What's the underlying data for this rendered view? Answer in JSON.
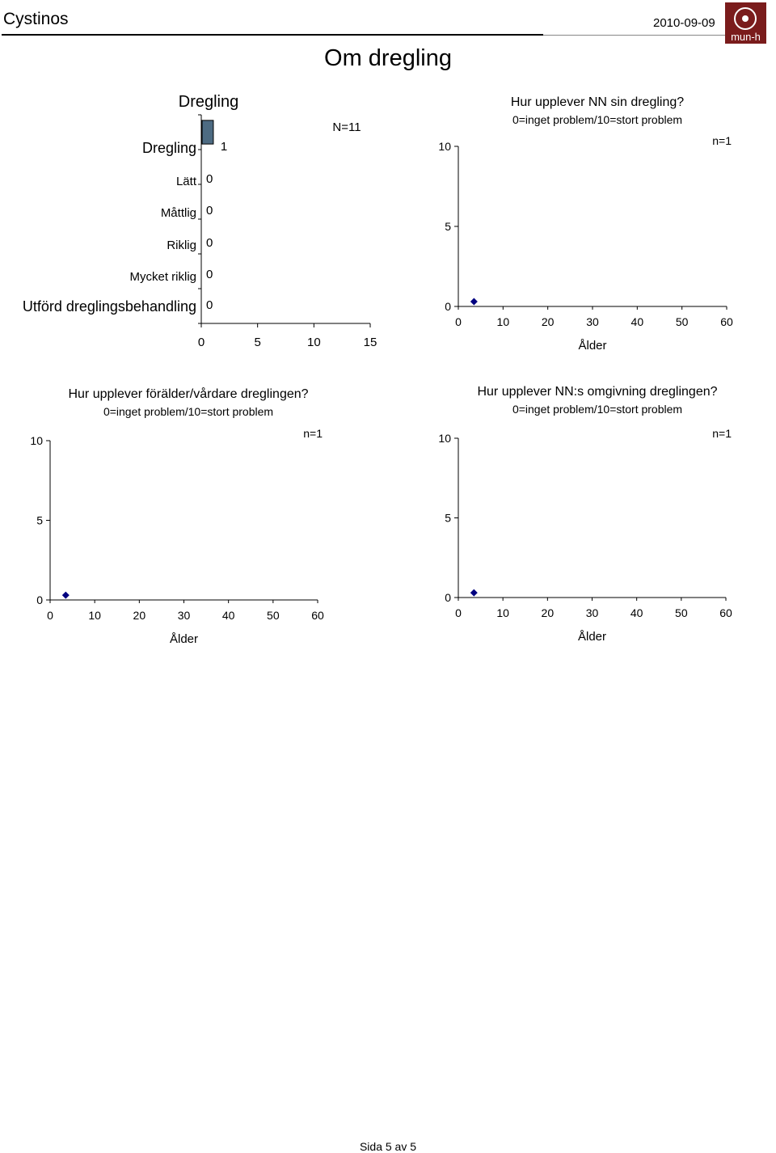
{
  "header": {
    "app_name": "Cystinos",
    "date": "2010-09-09",
    "logo_text": "mun-h",
    "colors": {
      "logo_bg": "#7a1c1c",
      "bar": "#4d6b82",
      "marker": "#000080"
    }
  },
  "page_title": "Om dregling",
  "footer": "Sida 5 av 5",
  "chart_data": [
    {
      "type": "bar",
      "orientation": "horizontal",
      "title": "Dregling",
      "annotation": "N=11",
      "categories": [
        "Dregling",
        "Lätt",
        "Måttlig",
        "Riklig",
        "Mycket riklig",
        "Utförd dreglingsbehandling"
      ],
      "values": [
        1,
        0,
        0,
        0,
        0,
        0
      ],
      "xlim": [
        0,
        15
      ],
      "xticks": [
        "0",
        "5",
        "10",
        "15"
      ]
    },
    {
      "type": "scatter",
      "title": "Hur upplever NN sin dregling?",
      "subtitle": "0=inget problem/10=stort problem",
      "annotation": "n=1",
      "xlabel": "Ålder",
      "xlim": [
        0,
        60
      ],
      "ylim": [
        0,
        10
      ],
      "xticks": [
        "0",
        "10",
        "20",
        "30",
        "40",
        "50",
        "60"
      ],
      "yticks": [
        "0",
        "5",
        "10"
      ],
      "points": [
        {
          "x": 3.5,
          "y": 0.3
        }
      ]
    },
    {
      "type": "scatter",
      "title": "Hur upplever förälder/vårdare dreglingen?",
      "subtitle": "0=inget problem/10=stort problem",
      "annotation": "n=1",
      "xlabel": "Ålder",
      "xlim": [
        0,
        60
      ],
      "ylim": [
        0,
        10
      ],
      "xticks": [
        "0",
        "10",
        "20",
        "30",
        "40",
        "50",
        "60"
      ],
      "yticks": [
        "0",
        "5",
        "10"
      ],
      "points": [
        {
          "x": 3.5,
          "y": 0.3
        }
      ]
    },
    {
      "type": "scatter",
      "title": "Hur upplever NN:s omgivning dreglingen?",
      "subtitle": "0=inget problem/10=stort problem",
      "annotation": "n=1",
      "xlabel": "Ålder",
      "xlim": [
        0,
        60
      ],
      "ylim": [
        0,
        10
      ],
      "xticks": [
        "0",
        "10",
        "20",
        "30",
        "40",
        "50",
        "60"
      ],
      "yticks": [
        "0",
        "5",
        "10"
      ],
      "points": [
        {
          "x": 3.5,
          "y": 0.3
        }
      ]
    }
  ]
}
